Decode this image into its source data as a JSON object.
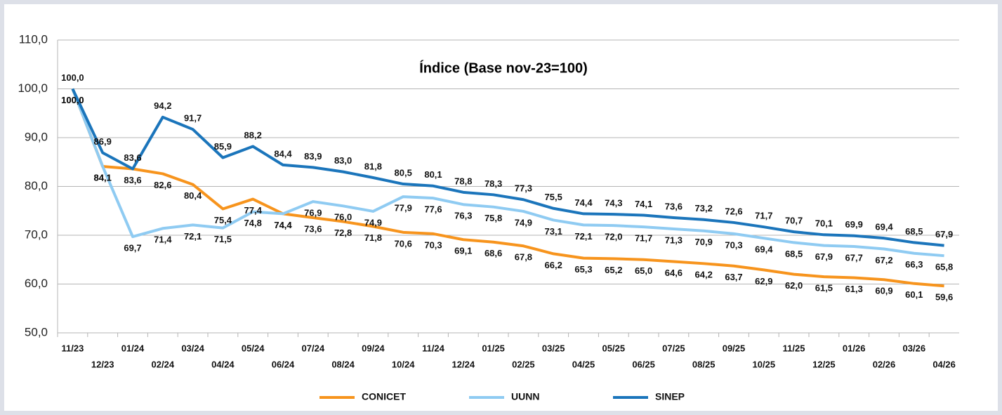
{
  "chart_data": {
    "type": "line",
    "title": "Índice (Base nov-23=100)",
    "categories": [
      "11/23",
      "12/23",
      "01/24",
      "02/24",
      "03/24",
      "04/24",
      "05/24",
      "06/24",
      "07/24",
      "08/24",
      "09/24",
      "10/24",
      "11/24",
      "12/24",
      "01/25",
      "02/25",
      "03/25",
      "04/25",
      "05/25",
      "06/25",
      "07/25",
      "08/25",
      "09/25",
      "10/25",
      "11/25",
      "12/25",
      "01/26",
      "02/26",
      "03/26",
      "04/26"
    ],
    "series": [
      {
        "name": "CONICET",
        "color": "#f7941d",
        "values": [
          100.0,
          84.1,
          83.6,
          82.6,
          80.4,
          75.4,
          77.4,
          74.4,
          73.6,
          72.8,
          71.8,
          70.6,
          70.3,
          69.1,
          68.6,
          67.8,
          66.2,
          65.3,
          65.2,
          65.0,
          64.6,
          64.2,
          63.7,
          62.9,
          62.0,
          61.5,
          61.3,
          60.9,
          60.1,
          59.6
        ],
        "value_labels": [
          "100,0",
          "84,1",
          "83,6",
          "82,6",
          "80,4",
          "75,4",
          "77,4",
          "74,4",
          "73,6",
          "72,8",
          "71,8",
          "70,6",
          "70,3",
          "69,1",
          "68,6",
          "67,8",
          "66,2",
          "65,3",
          "65,2",
          "65,0",
          "64,6",
          "64,2",
          "63,7",
          "62,9",
          "62,0",
          "61,5",
          "61,3",
          "60,9",
          "60,1",
          "59,6"
        ]
      },
      {
        "name": "UUNN",
        "color": "#8fcbf2",
        "values": [
          100.0,
          84.1,
          69.7,
          71.4,
          72.1,
          71.5,
          74.8,
          74.4,
          76.9,
          76.0,
          74.9,
          77.9,
          77.6,
          76.3,
          75.8,
          74.9,
          73.1,
          72.1,
          72.0,
          71.7,
          71.3,
          70.9,
          70.3,
          69.4,
          68.5,
          67.9,
          67.7,
          67.2,
          66.3,
          65.8
        ],
        "value_labels": [
          "100,0",
          "84,1",
          "69,7",
          "71,4",
          "72,1",
          "71,5",
          "74,8",
          "74,4",
          "76,9",
          "76,0",
          "74,9",
          "77,9",
          "77,6",
          "76,3",
          "75,8",
          "74,9",
          "73,1",
          "72,1",
          "72,0",
          "71,7",
          "71,3",
          "70,9",
          "70,3",
          "69,4",
          "68,5",
          "67,9",
          "67,7",
          "67,2",
          "66,3",
          "65,8"
        ]
      },
      {
        "name": "SINEP",
        "color": "#1b75bb",
        "values": [
          100.0,
          86.9,
          83.6,
          94.2,
          91.7,
          85.9,
          88.2,
          84.4,
          83.9,
          83.0,
          81.8,
          80.5,
          80.1,
          78.8,
          78.3,
          77.3,
          75.5,
          74.4,
          74.3,
          74.1,
          73.6,
          73.2,
          72.6,
          71.7,
          70.7,
          70.1,
          69.9,
          69.4,
          68.5,
          67.9
        ],
        "value_labels": [
          "100,0",
          "86,9",
          "83,6",
          "94,2",
          "91,7",
          "85,9",
          "88,2",
          "84,4",
          "83,9",
          "83,0",
          "81,8",
          "80,5",
          "80,1",
          "78,8",
          "78,3",
          "77,3",
          "75,5",
          "74,4",
          "74,3",
          "74,1",
          "73,6",
          "73,2",
          "72,6",
          "71,7",
          "70,7",
          "70,1",
          "69,9",
          "69,4",
          "68,5",
          "67,9"
        ]
      }
    ],
    "ylim": [
      50,
      110
    ],
    "yticks": [
      {
        "value": 50,
        "label": "50,0"
      },
      {
        "value": 60,
        "label": "60,0"
      },
      {
        "value": 70,
        "label": "70,0"
      },
      {
        "value": 80,
        "label": "80,0"
      },
      {
        "value": 90,
        "label": "90,0"
      },
      {
        "value": 100,
        "label": "100,0"
      },
      {
        "value": 110,
        "label": "110,0"
      }
    ],
    "grid": true,
    "legend": "bottom"
  }
}
